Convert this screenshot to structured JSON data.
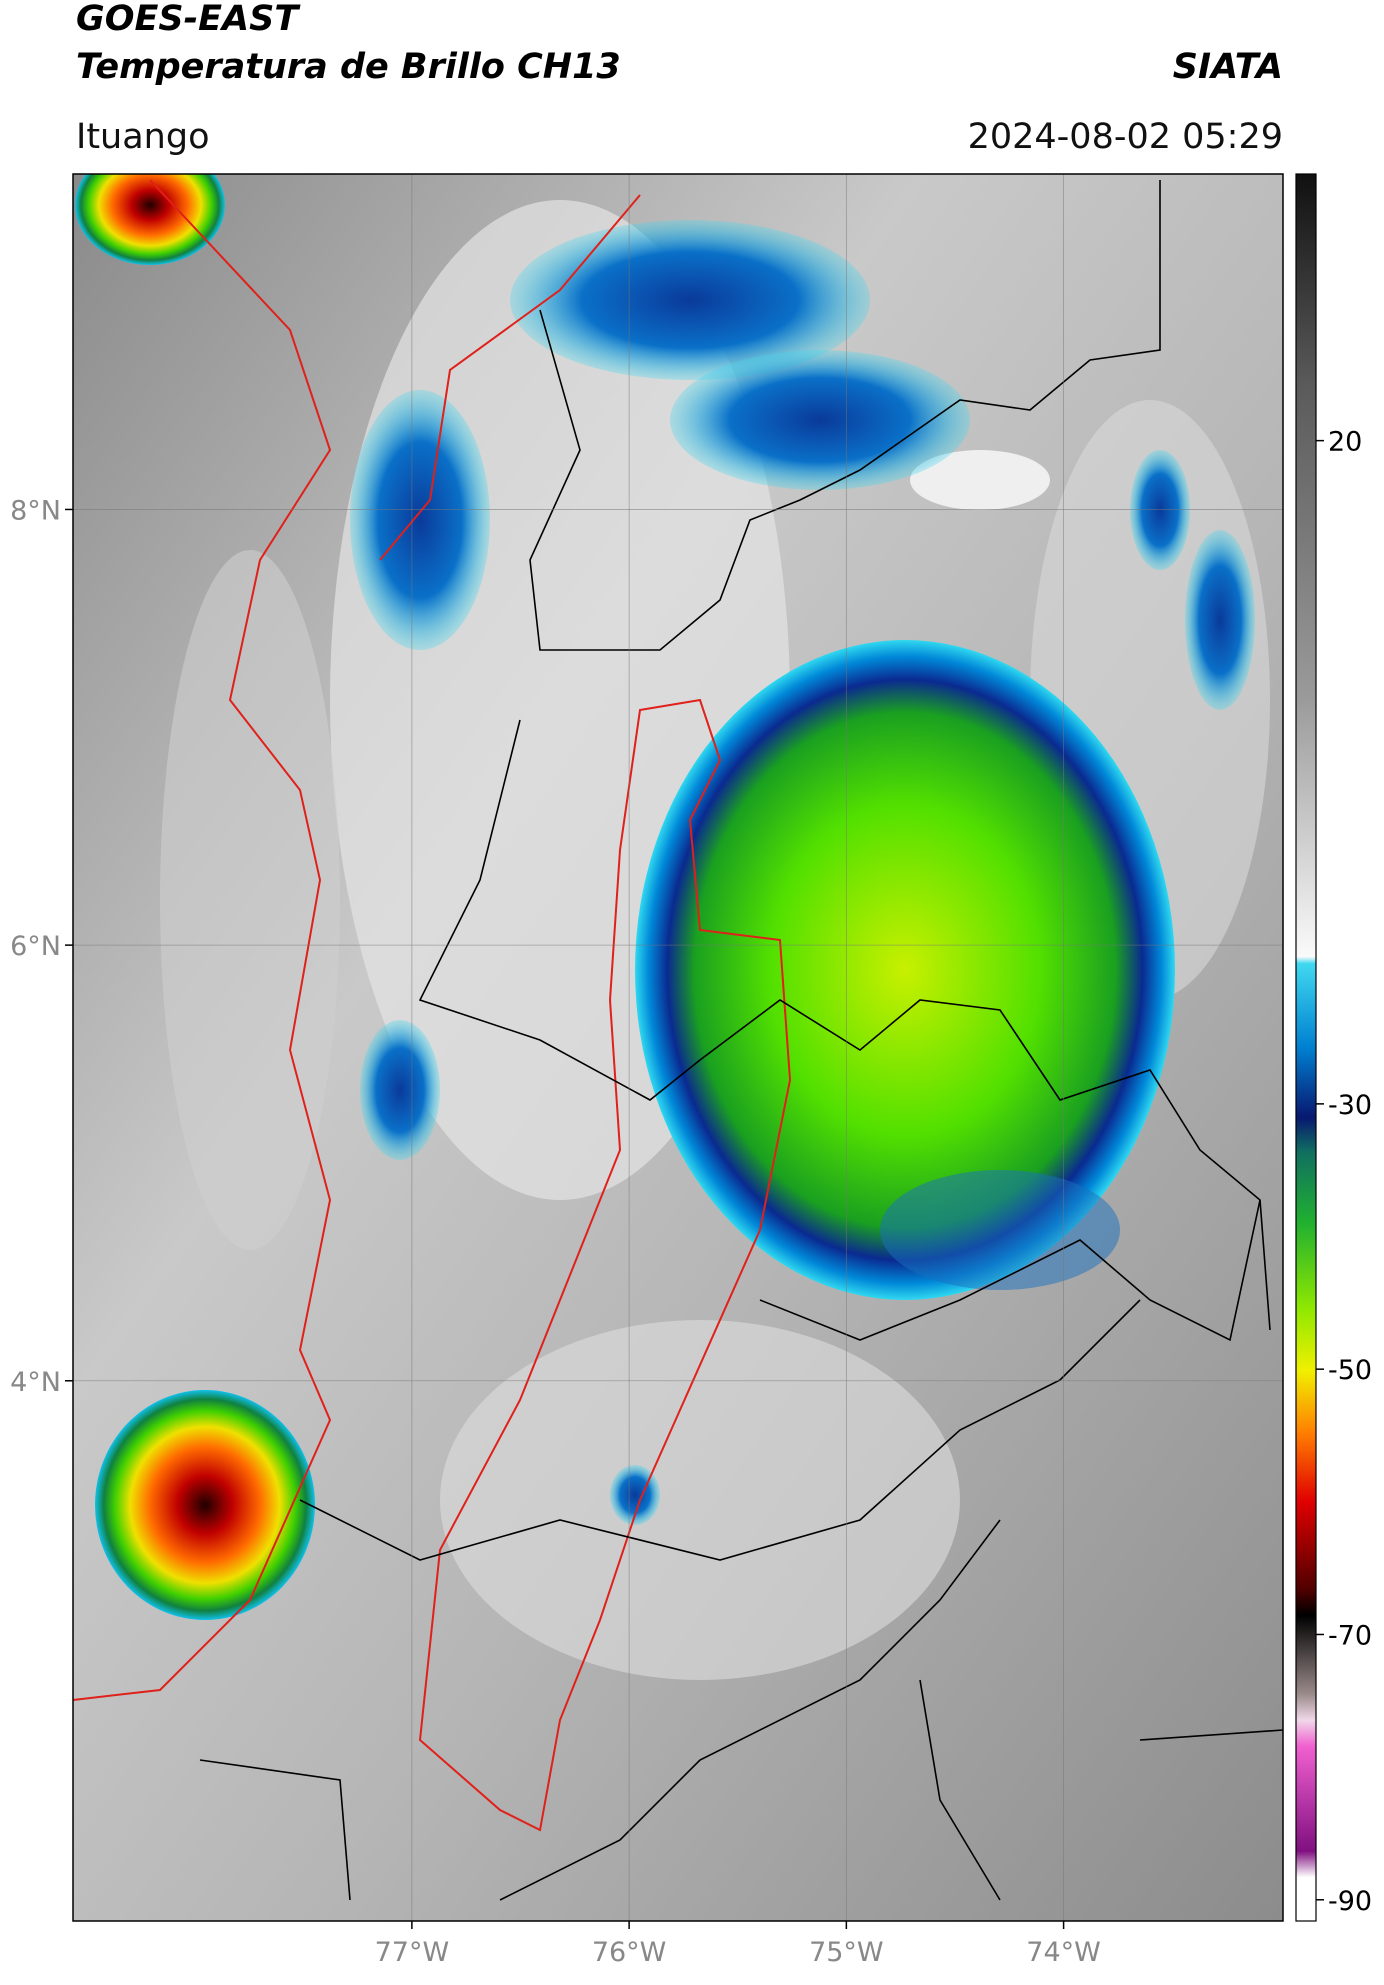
{
  "header": {
    "title": "GOES-EAST",
    "subtitle": "Temperatura de Brillo CH13",
    "source": "SIATA",
    "location": "Ituango",
    "datetime": "2024-08-02 05:29"
  },
  "map": {
    "lat_range": [
      1.52,
      9.54
    ],
    "lon_range": [
      -78.56,
      -72.99
    ],
    "lat_ticks": [
      {
        "value": 8,
        "label": "8°N"
      },
      {
        "value": 6,
        "label": "6°N"
      },
      {
        "value": 4,
        "label": "4°N"
      }
    ],
    "lon_ticks": [
      {
        "value": -77,
        "label": "77°W"
      },
      {
        "value": -76,
        "label": "76°W"
      },
      {
        "value": -75,
        "label": "75°W"
      },
      {
        "value": -74,
        "label": "74°W"
      }
    ],
    "grid": true
  },
  "colorbar": {
    "range": [
      -91.6,
      40.1
    ],
    "ticks": [
      20,
      -30,
      -50,
      -70,
      -90
    ]
  }
}
